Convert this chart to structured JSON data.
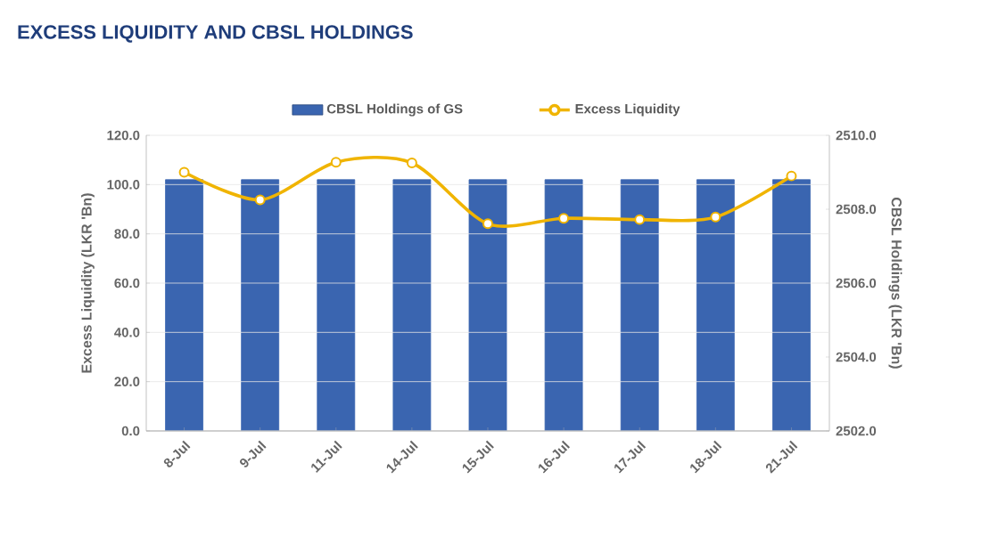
{
  "chart_data": {
    "type": "bar",
    "title": "EXCESS LIQUIDITY AND CBSL HOLDINGS",
    "categories": [
      "8-Jul",
      "9-Jul",
      "11-Jul",
      "14-Jul",
      "15-Jul",
      "16-Jul",
      "17-Jul",
      "18-Jul",
      "21-Jul"
    ],
    "series": [
      {
        "name": "CBSL Holdings of GS",
        "axis": "y2",
        "color": "#3a65b0",
        "values": [
          2508.8,
          2508.8,
          2508.8,
          2508.8,
          2508.8,
          2508.8,
          2508.8,
          2508.8,
          2508.8
        ]
      },
      {
        "name": "Excess Liquidity",
        "type": "line",
        "color": "#f0b400",
        "marker": "circle",
        "values": [
          105.0,
          93.8,
          109.1,
          108.8,
          84.1,
          86.3,
          85.8,
          86.8,
          103.5
        ]
      }
    ],
    "ylabel": "Excess Liquidity (LKR 'Bn)",
    "y2label": "CBSL Holdings (LKR 'Bn)",
    "ylim": [
      0,
      120
    ],
    "yticks": [
      {
        "value": 0,
        "label": "0.0"
      },
      {
        "value": 20,
        "label": "20.0"
      },
      {
        "value": 40,
        "label": "40.0"
      },
      {
        "value": 60,
        "label": "60.0"
      },
      {
        "value": 80,
        "label": "80.0"
      },
      {
        "value": 100,
        "label": "100.0"
      },
      {
        "value": 120,
        "label": "120.0"
      }
    ],
    "y2lim": [
      2502,
      2510
    ],
    "y2ticks": [
      {
        "value": 2502,
        "label": "2502.0"
      },
      {
        "value": 2504,
        "label": "2504.0"
      },
      {
        "value": 2506,
        "label": "2506.0"
      },
      {
        "value": 2508,
        "label": "2508.0"
      },
      {
        "value": 2510,
        "label": "2510.0"
      }
    ],
    "grid": "y",
    "legend": "top"
  }
}
